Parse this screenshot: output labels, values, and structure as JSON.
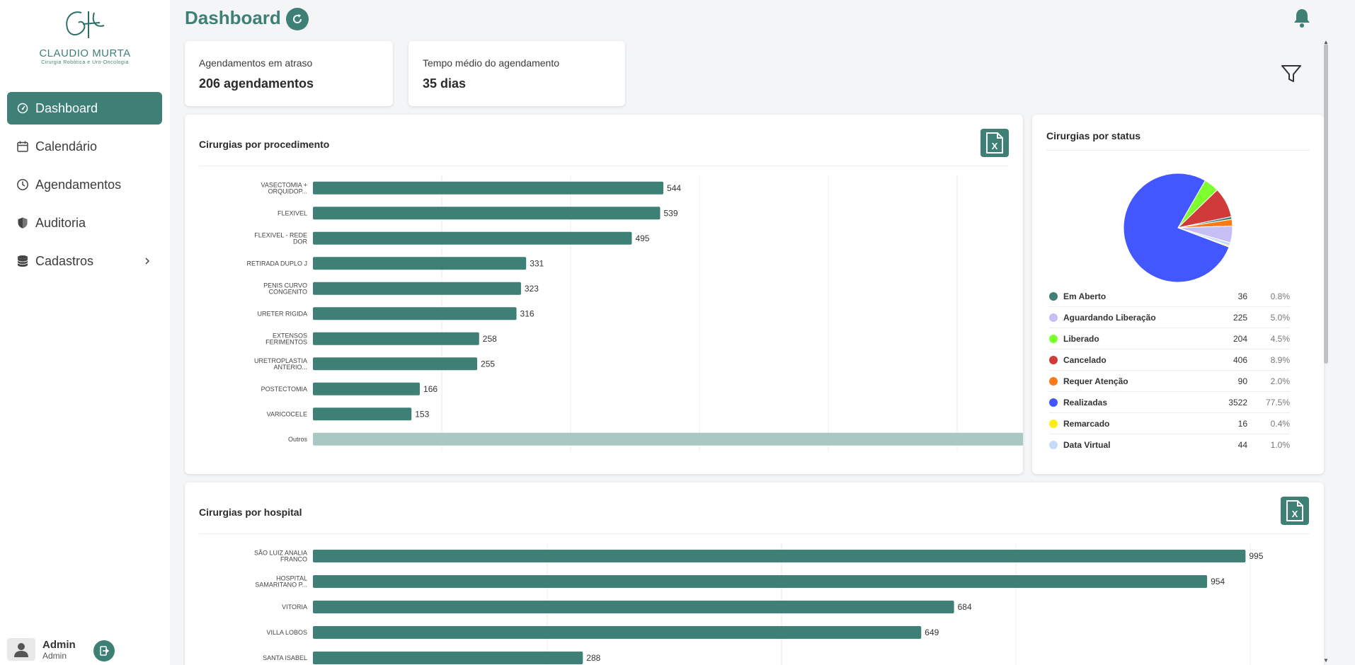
{
  "brand": {
    "logo_text": "CLAUDIO MURTA",
    "logo_subtitle": "Cirurgia Robótica e Uro-Oncologia",
    "accent": "#3e7f76"
  },
  "sidebar": {
    "items": [
      {
        "label": "Dashboard",
        "icon": "gauge-icon",
        "active": true
      },
      {
        "label": "Calendário",
        "icon": "calendar-icon",
        "active": false
      },
      {
        "label": "Agendamentos",
        "icon": "clock-icon",
        "active": false
      },
      {
        "label": "Auditoria",
        "icon": "shield-icon",
        "active": false
      },
      {
        "label": "Cadastros",
        "icon": "database-icon",
        "active": false,
        "has_submenu": true
      }
    ]
  },
  "user": {
    "name": "Admin",
    "role": "Admin"
  },
  "header": {
    "title": "Dashboard"
  },
  "kpis": [
    {
      "label": "Agendamentos em atraso",
      "value": "206 agendamentos"
    },
    {
      "label": "Tempo médio do agendamento",
      "value": "35 dias"
    }
  ],
  "procedure_chart": {
    "title": "Cirurgias por procedimento",
    "chart_data": {
      "type": "bar",
      "orientation": "horizontal",
      "categories": [
        [
          "VASECTOMIA +",
          "ORQUIDOP..."
        ],
        [
          "FLEXIVEL"
        ],
        [
          "FLEXIVEL - REDE",
          "DOR"
        ],
        [
          "RETIRADA DUPLO J"
        ],
        [
          "PENIS CURVO",
          "CONGENITO"
        ],
        [
          "URETER RIGIDA"
        ],
        [
          "EXTENSOS",
          "FERIMENTOS"
        ],
        [
          "URETROPLASTIA",
          "ANTERIO..."
        ],
        [
          "POSTECTOMIA"
        ],
        [
          "VARICOCELE"
        ],
        [
          "Outros"
        ]
      ],
      "values": [
        544,
        539,
        495,
        331,
        323,
        316,
        258,
        255,
        166,
        153,
        1163
      ],
      "highlight_last": true,
      "xlim": [
        0,
        1200
      ],
      "grid": true
    }
  },
  "status_chart": {
    "title": "Cirurgias por status",
    "chart_data": {
      "type": "pie",
      "legend_position": "bottom",
      "slices": [
        {
          "label": "Em Aberto",
          "value": 36,
          "percent": "0.8%",
          "color": "#3e7f76"
        },
        {
          "label": "Aguardando Liberação",
          "value": 225,
          "percent": "5.0%",
          "color": "#c5bff5"
        },
        {
          "label": "Liberado",
          "value": 204,
          "percent": "4.5%",
          "color": "#7dff2e"
        },
        {
          "label": "Cancelado",
          "value": 406,
          "percent": "8.9%",
          "color": "#d13a3a"
        },
        {
          "label": "Requer Atenção",
          "value": 90,
          "percent": "2.0%",
          "color": "#ff7a14"
        },
        {
          "label": "Realizadas",
          "value": 3522,
          "percent": "77.5%",
          "color": "#4257ff"
        },
        {
          "label": "Remarcado",
          "value": 16,
          "percent": "0.4%",
          "color": "#ffee12"
        },
        {
          "label": "Data Virtual",
          "value": 44,
          "percent": "1.0%",
          "color": "#c6dbf7"
        }
      ]
    }
  },
  "hospital_chart": {
    "title": "Cirurgias por hospital",
    "chart_data": {
      "type": "bar",
      "orientation": "horizontal",
      "categories": [
        [
          "SÃO LUIZ ANALIA",
          "FRANCO"
        ],
        [
          "HOSPITAL",
          "SAMARITANO P..."
        ],
        [
          "VITORIA"
        ],
        [
          "VILLA LOBOS"
        ],
        [
          "SANTA ISABEL"
        ]
      ],
      "values": [
        995,
        954,
        684,
        649,
        288
      ],
      "xlim": [
        0,
        1000
      ],
      "grid": true
    }
  }
}
